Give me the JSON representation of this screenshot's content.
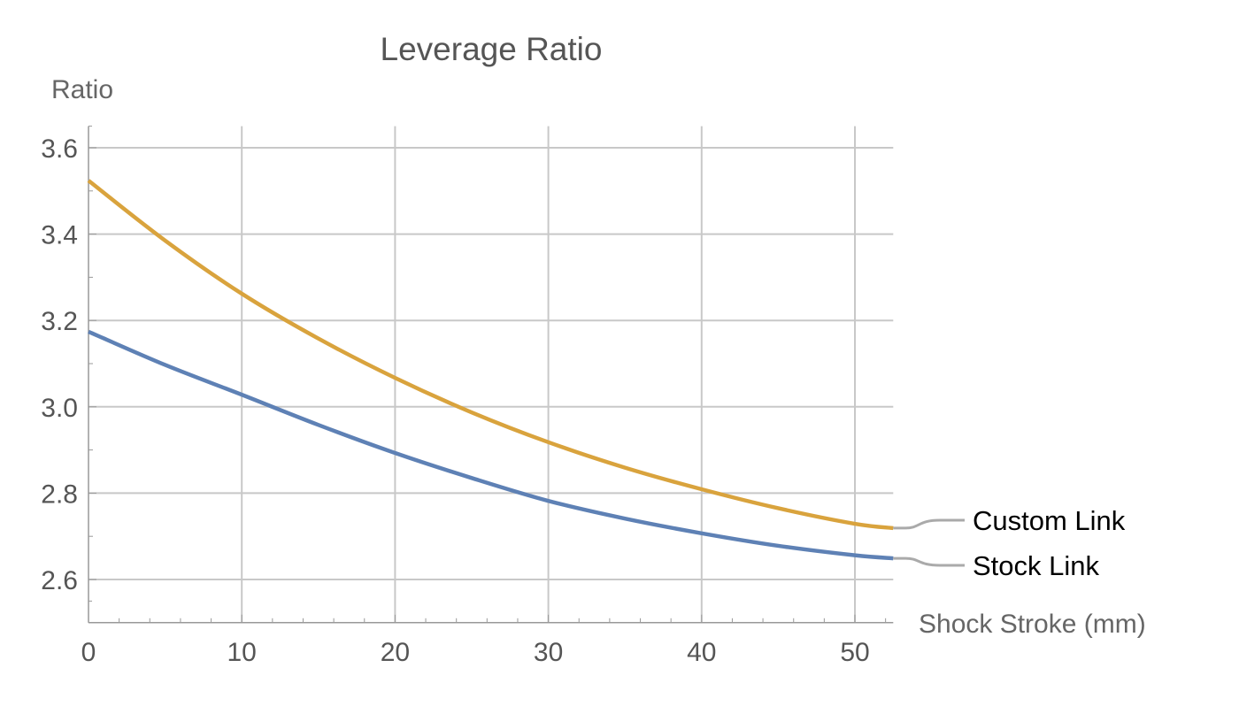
{
  "chart_data": {
    "type": "line",
    "title": "Leverage Ratio",
    "xlabel": "Shock Stroke (mm)",
    "ylabel": "Ratio",
    "xlim": [
      0,
      52.5
    ],
    "ylim": [
      2.5,
      3.65
    ],
    "xticks": [
      0,
      10,
      20,
      30,
      40,
      50
    ],
    "yticks": [
      2.6,
      2.8,
      3.0,
      3.2,
      3.4,
      3.6
    ],
    "xtick_labels": [
      "0",
      "10",
      "20",
      "30",
      "40",
      "50"
    ],
    "ytick_labels": [
      "2.6",
      "2.8",
      "3.0",
      "3.2",
      "3.4",
      "3.6"
    ],
    "grid": true,
    "legend": "right",
    "x": [
      0,
      5,
      10,
      15,
      20,
      25,
      30,
      35,
      40,
      45,
      50,
      52.5
    ],
    "series": [
      {
        "name": "Custom Link",
        "color": "#d9a33d",
        "values": [
          3.524,
          3.385,
          3.262,
          3.158,
          3.067,
          2.987,
          2.918,
          2.859,
          2.809,
          2.765,
          2.729,
          2.719
        ]
      },
      {
        "name": "Stock Link",
        "color": "#5e81b5",
        "values": [
          3.174,
          3.097,
          3.028,
          2.958,
          2.893,
          2.835,
          2.782,
          2.741,
          2.707,
          2.678,
          2.656,
          2.649
        ]
      }
    ],
    "connector_color": "#aaaaaa",
    "grid_color": "#c8c8c8"
  }
}
